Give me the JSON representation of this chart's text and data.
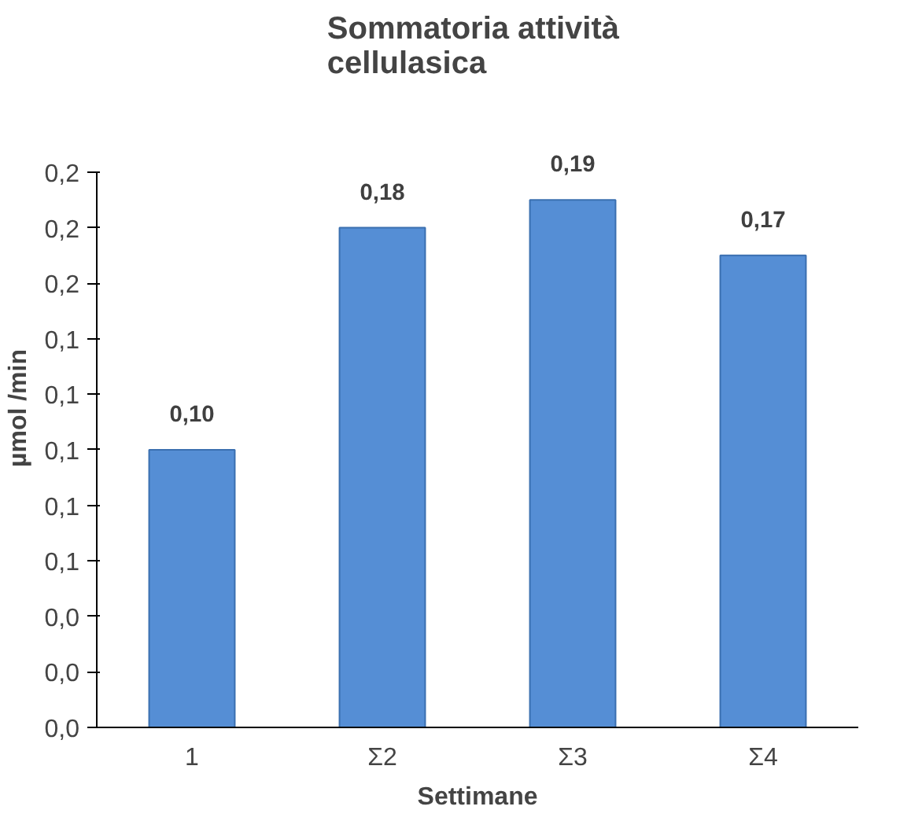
{
  "chart_data": {
    "type": "bar",
    "title": "Sommatoria  attività\ncellulasica",
    "xlabel": "Settimane",
    "ylabel": "µmol /min",
    "categories": [
      "1",
      "Σ2",
      "Σ3",
      "Σ4"
    ],
    "values": [
      0.1,
      0.18,
      0.19,
      0.17
    ],
    "color": "#558ed5",
    "value_labels": [
      "0,10",
      "0,18",
      "0,19",
      "0,17"
    ],
    "ylim": [
      0,
      0.2
    ],
    "yticks": [
      {
        "value": 0,
        "label": "0,0"
      },
      {
        "value": 0.02,
        "label": "0,0"
      },
      {
        "value": 0.04,
        "label": "0,0"
      },
      {
        "value": 0.06,
        "label": "0,1"
      },
      {
        "value": 0.08,
        "label": "0,1"
      },
      {
        "value": 0.1,
        "label": "0,1"
      },
      {
        "value": 0.12,
        "label": "0,1"
      },
      {
        "value": 0.14,
        "label": "0,1"
      },
      {
        "value": 0.16,
        "label": "0,2"
      },
      {
        "value": 0.18,
        "label": "0,2"
      },
      {
        "value": 0.2,
        "label": "0,2"
      }
    ],
    "grid": false
  }
}
